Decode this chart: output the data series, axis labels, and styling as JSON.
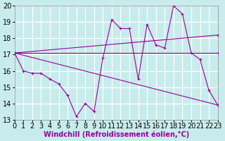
{
  "xlabel": "Windchill (Refroidissement éolien,°C)",
  "background_color": "#c8ecec",
  "line_color": "#990099",
  "grid_color": "#ffffff",
  "xlim": [
    0,
    23
  ],
  "ylim": [
    13,
    20
  ],
  "xticks": [
    0,
    1,
    2,
    3,
    4,
    5,
    6,
    7,
    8,
    9,
    10,
    11,
    12,
    13,
    14,
    15,
    16,
    17,
    18,
    19,
    20,
    21,
    22,
    23
  ],
  "yticks": [
    13,
    14,
    15,
    16,
    17,
    18,
    19,
    20
  ],
  "lines": [
    {
      "x": [
        0,
        1,
        2,
        3,
        4,
        5,
        6,
        7,
        8,
        9,
        10,
        11,
        12,
        13,
        14,
        15,
        16,
        17,
        18,
        19,
        20,
        21,
        22,
        23
      ],
      "y": [
        17.1,
        16.0,
        15.85,
        15.85,
        15.5,
        15.2,
        14.5,
        13.2,
        14.0,
        13.5,
        16.8,
        19.15,
        18.6,
        18.6,
        15.5,
        18.85,
        17.6,
        17.4,
        20.0,
        19.5,
        17.1,
        16.7,
        14.8,
        13.9
      ]
    },
    {
      "x": [
        0,
        23
      ],
      "y": [
        17.1,
        18.2
      ]
    },
    {
      "x": [
        0,
        23
      ],
      "y": [
        17.1,
        17.1
      ]
    },
    {
      "x": [
        0,
        23
      ],
      "y": [
        17.1,
        13.9
      ]
    }
  ],
  "fontsize_xlabel": 7,
  "fontsize_tick": 7
}
